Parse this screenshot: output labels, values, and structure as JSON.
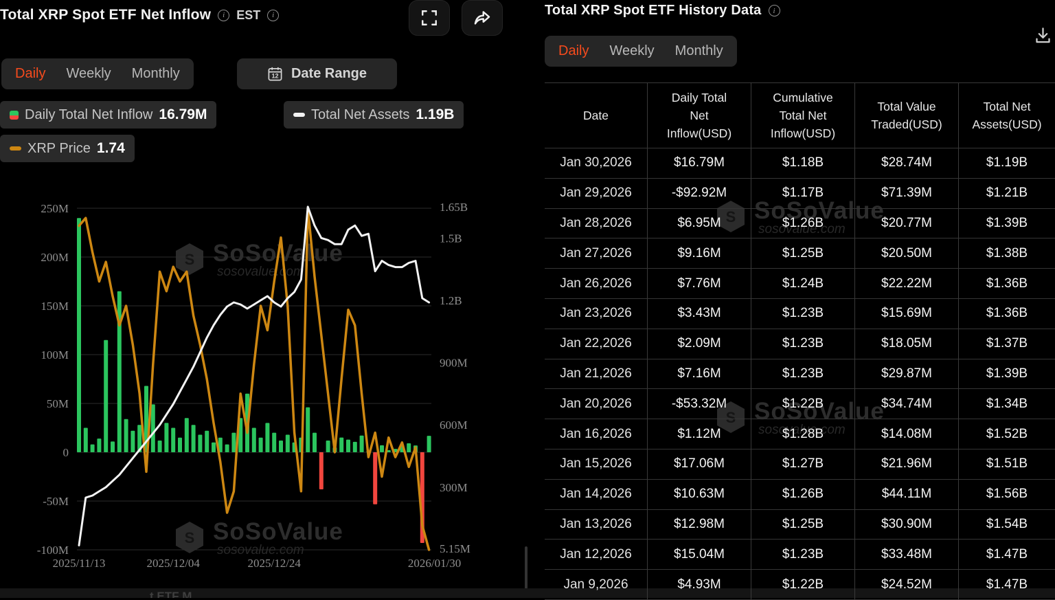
{
  "colors": {
    "accent": "#f64b1d",
    "positive_green": "#2bc55e",
    "negative_red": "#f2463e",
    "price_line_orange": "#cd8712",
    "assets_line_white": "#f3f3f3",
    "panel_chip_bg": "#262626",
    "grid_line": "#2c2c2c"
  },
  "watermark": {
    "brand": "SoSoValue",
    "domain": "sosovalue.com"
  },
  "left_panel": {
    "title": "Total XRP Spot ETF Net Inflow",
    "timezone": "EST",
    "tabs": [
      "Daily",
      "Weekly",
      "Monthly"
    ],
    "active_tab": "Daily",
    "date_range_label": "Date Range",
    "calendar_day": "12",
    "legend": [
      {
        "label": "Daily Total Net Inflow",
        "value": "16.79M",
        "icon": "green-red-square"
      },
      {
        "label": "Total Net Assets",
        "value": "1.19B",
        "icon": "white-dash"
      },
      {
        "label": "XRP Price",
        "value": "1.74",
        "icon": "orange-dash"
      }
    ]
  },
  "right_panel": {
    "title": "Total XRP Spot ETF History Data",
    "tabs": [
      "Daily",
      "Weekly",
      "Monthly"
    ],
    "active_tab": "Daily",
    "columns": [
      "Date",
      "Daily Total\nNet\nInflow(USD)",
      "Cumulative\nTotal Net\nInflow(USD)",
      "Total Value\nTraded(USD)",
      "Total Net\nAssets(USD)"
    ],
    "rows": [
      {
        "date": "Jan 30,2026",
        "inflow": "$16.79M",
        "sign": "pos",
        "cumulative": "$1.18B",
        "traded": "$28.74M",
        "assets": "$1.19B"
      },
      {
        "date": "Jan 29,2026",
        "inflow": "-$92.92M",
        "sign": "neg",
        "cumulative": "$1.17B",
        "traded": "$71.39M",
        "assets": "$1.21B"
      },
      {
        "date": "Jan 28,2026",
        "inflow": "$6.95M",
        "sign": "pos",
        "cumulative": "$1.26B",
        "traded": "$20.77M",
        "assets": "$1.39B"
      },
      {
        "date": "Jan 27,2026",
        "inflow": "$9.16M",
        "sign": "pos",
        "cumulative": "$1.25B",
        "traded": "$20.50M",
        "assets": "$1.38B"
      },
      {
        "date": "Jan 26,2026",
        "inflow": "$7.76M",
        "sign": "pos",
        "cumulative": "$1.24B",
        "traded": "$22.22M",
        "assets": "$1.36B"
      },
      {
        "date": "Jan 23,2026",
        "inflow": "$3.43M",
        "sign": "pos",
        "cumulative": "$1.23B",
        "traded": "$15.69M",
        "assets": "$1.36B"
      },
      {
        "date": "Jan 22,2026",
        "inflow": "$2.09M",
        "sign": "pos",
        "cumulative": "$1.23B",
        "traded": "$18.05M",
        "assets": "$1.37B"
      },
      {
        "date": "Jan 21,2026",
        "inflow": "$7.16M",
        "sign": "pos",
        "cumulative": "$1.23B",
        "traded": "$29.87M",
        "assets": "$1.39B"
      },
      {
        "date": "Jan 20,2026",
        "inflow": "-$53.32M",
        "sign": "neg",
        "cumulative": "$1.22B",
        "traded": "$34.74M",
        "assets": "$1.34B"
      },
      {
        "date": "Jan 16,2026",
        "inflow": "$1.12M",
        "sign": "pos",
        "cumulative": "$1.28B",
        "traded": "$14.08M",
        "assets": "$1.52B"
      },
      {
        "date": "Jan 15,2026",
        "inflow": "$17.06M",
        "sign": "pos",
        "cumulative": "$1.27B",
        "traded": "$21.96M",
        "assets": "$1.51B"
      },
      {
        "date": "Jan 14,2026",
        "inflow": "$10.63M",
        "sign": "pos",
        "cumulative": "$1.26B",
        "traded": "$44.11M",
        "assets": "$1.56B"
      },
      {
        "date": "Jan 13,2026",
        "inflow": "$12.98M",
        "sign": "pos",
        "cumulative": "$1.25B",
        "traded": "$30.90M",
        "assets": "$1.54B"
      },
      {
        "date": "Jan 12,2026",
        "inflow": "$15.04M",
        "sign": "pos",
        "cumulative": "$1.23B",
        "traded": "$33.48M",
        "assets": "$1.47B"
      },
      {
        "date": "Jan 9,2026",
        "inflow": "$4.93M",
        "sign": "pos",
        "cumulative": "$1.22B",
        "traded": "$24.52M",
        "assets": "$1.47B"
      }
    ]
  },
  "footer_partial_text": "t ETF M",
  "chart_data": {
    "type": "combo",
    "title": "Total XRP Spot ETF Net Inflow",
    "x_tick_labels": [
      "2025/11/13",
      "2025/12/04",
      "2025/12/24",
      "2026/01/30"
    ],
    "x_tick_day_index": [
      0,
      14,
      29,
      52
    ],
    "left_axis": {
      "ticks": [
        "250M",
        "200M",
        "150M",
        "100M",
        "50M",
        "0",
        "-50M",
        "-100M"
      ],
      "tick_values_M": [
        250,
        200,
        150,
        100,
        50,
        0,
        -50,
        -100
      ],
      "range_M": [
        -100,
        250
      ]
    },
    "right_axis": {
      "ticks": [
        "1.65B",
        "1.5B",
        "1.2B",
        "900M",
        "600M",
        "300M",
        "5.15M"
      ],
      "tick_values_B": [
        1.65,
        1.5,
        1.2,
        0.9,
        0.6,
        0.3,
        0.00515
      ],
      "range_B": [
        0.00515,
        1.65
      ]
    },
    "series": [
      {
        "name": "Daily Total Net Inflow",
        "type": "bar",
        "axis": "left",
        "unit": "USD millions",
        "current_label": "16.79M",
        "note": "values before Jan 9 estimated from bar heights",
        "values": [
          240,
          25,
          8,
          14,
          115,
          11,
          165,
          34,
          22,
          28,
          68,
          49,
          12,
          30,
          25,
          15,
          35,
          28,
          18,
          22,
          10,
          15,
          8,
          20,
          35,
          60,
          25,
          15,
          30,
          20,
          12,
          18,
          10,
          15,
          46,
          20,
          -38,
          12,
          4.93,
          15.04,
          12.98,
          10.63,
          17.06,
          1.12,
          -53.32,
          7.16,
          2.09,
          3.43,
          7.76,
          9.16,
          6.95,
          -92.92,
          16.79
        ]
      },
      {
        "name": "Total Net Assets",
        "type": "line",
        "axis": "right",
        "unit": "USD billions",
        "current_label": "1.19B",
        "note": "estimated from line position; Jan values match table",
        "values": [
          0.02,
          0.25,
          0.26,
          0.28,
          0.3,
          0.33,
          0.36,
          0.4,
          0.44,
          0.48,
          0.52,
          0.56,
          0.6,
          0.65,
          0.7,
          0.76,
          0.82,
          0.88,
          0.95,
          1.02,
          1.08,
          1.13,
          1.17,
          1.19,
          1.18,
          1.16,
          1.18,
          1.2,
          1.22,
          1.19,
          1.17,
          1.21,
          1.24,
          1.3,
          1.65,
          1.56,
          1.5,
          1.49,
          1.47,
          1.47,
          1.54,
          1.56,
          1.51,
          1.52,
          1.34,
          1.39,
          1.37,
          1.36,
          1.36,
          1.38,
          1.39,
          1.21,
          1.19
        ]
      },
      {
        "name": "XRP Price",
        "type": "line",
        "axis": "left-equivalent",
        "unit": "plot position in left-axis M units",
        "current_label": "1.74",
        "note": "price plotted on hidden scale; positions estimated",
        "values": [
          232,
          240,
          205,
          175,
          195,
          160,
          130,
          150,
          110,
          60,
          -20,
          90,
          185,
          165,
          190,
          175,
          185,
          140,
          110,
          75,
          30,
          -10,
          -62,
          -40,
          60,
          20,
          90,
          150,
          125,
          175,
          220,
          150,
          20,
          -40,
          250,
          180,
          120,
          60,
          0,
          75,
          146,
          130,
          60,
          -5,
          20,
          -25,
          15,
          -5,
          10,
          -15,
          5,
          -75,
          -100
        ]
      }
    ],
    "grid": true,
    "legend_position": "top-left"
  }
}
